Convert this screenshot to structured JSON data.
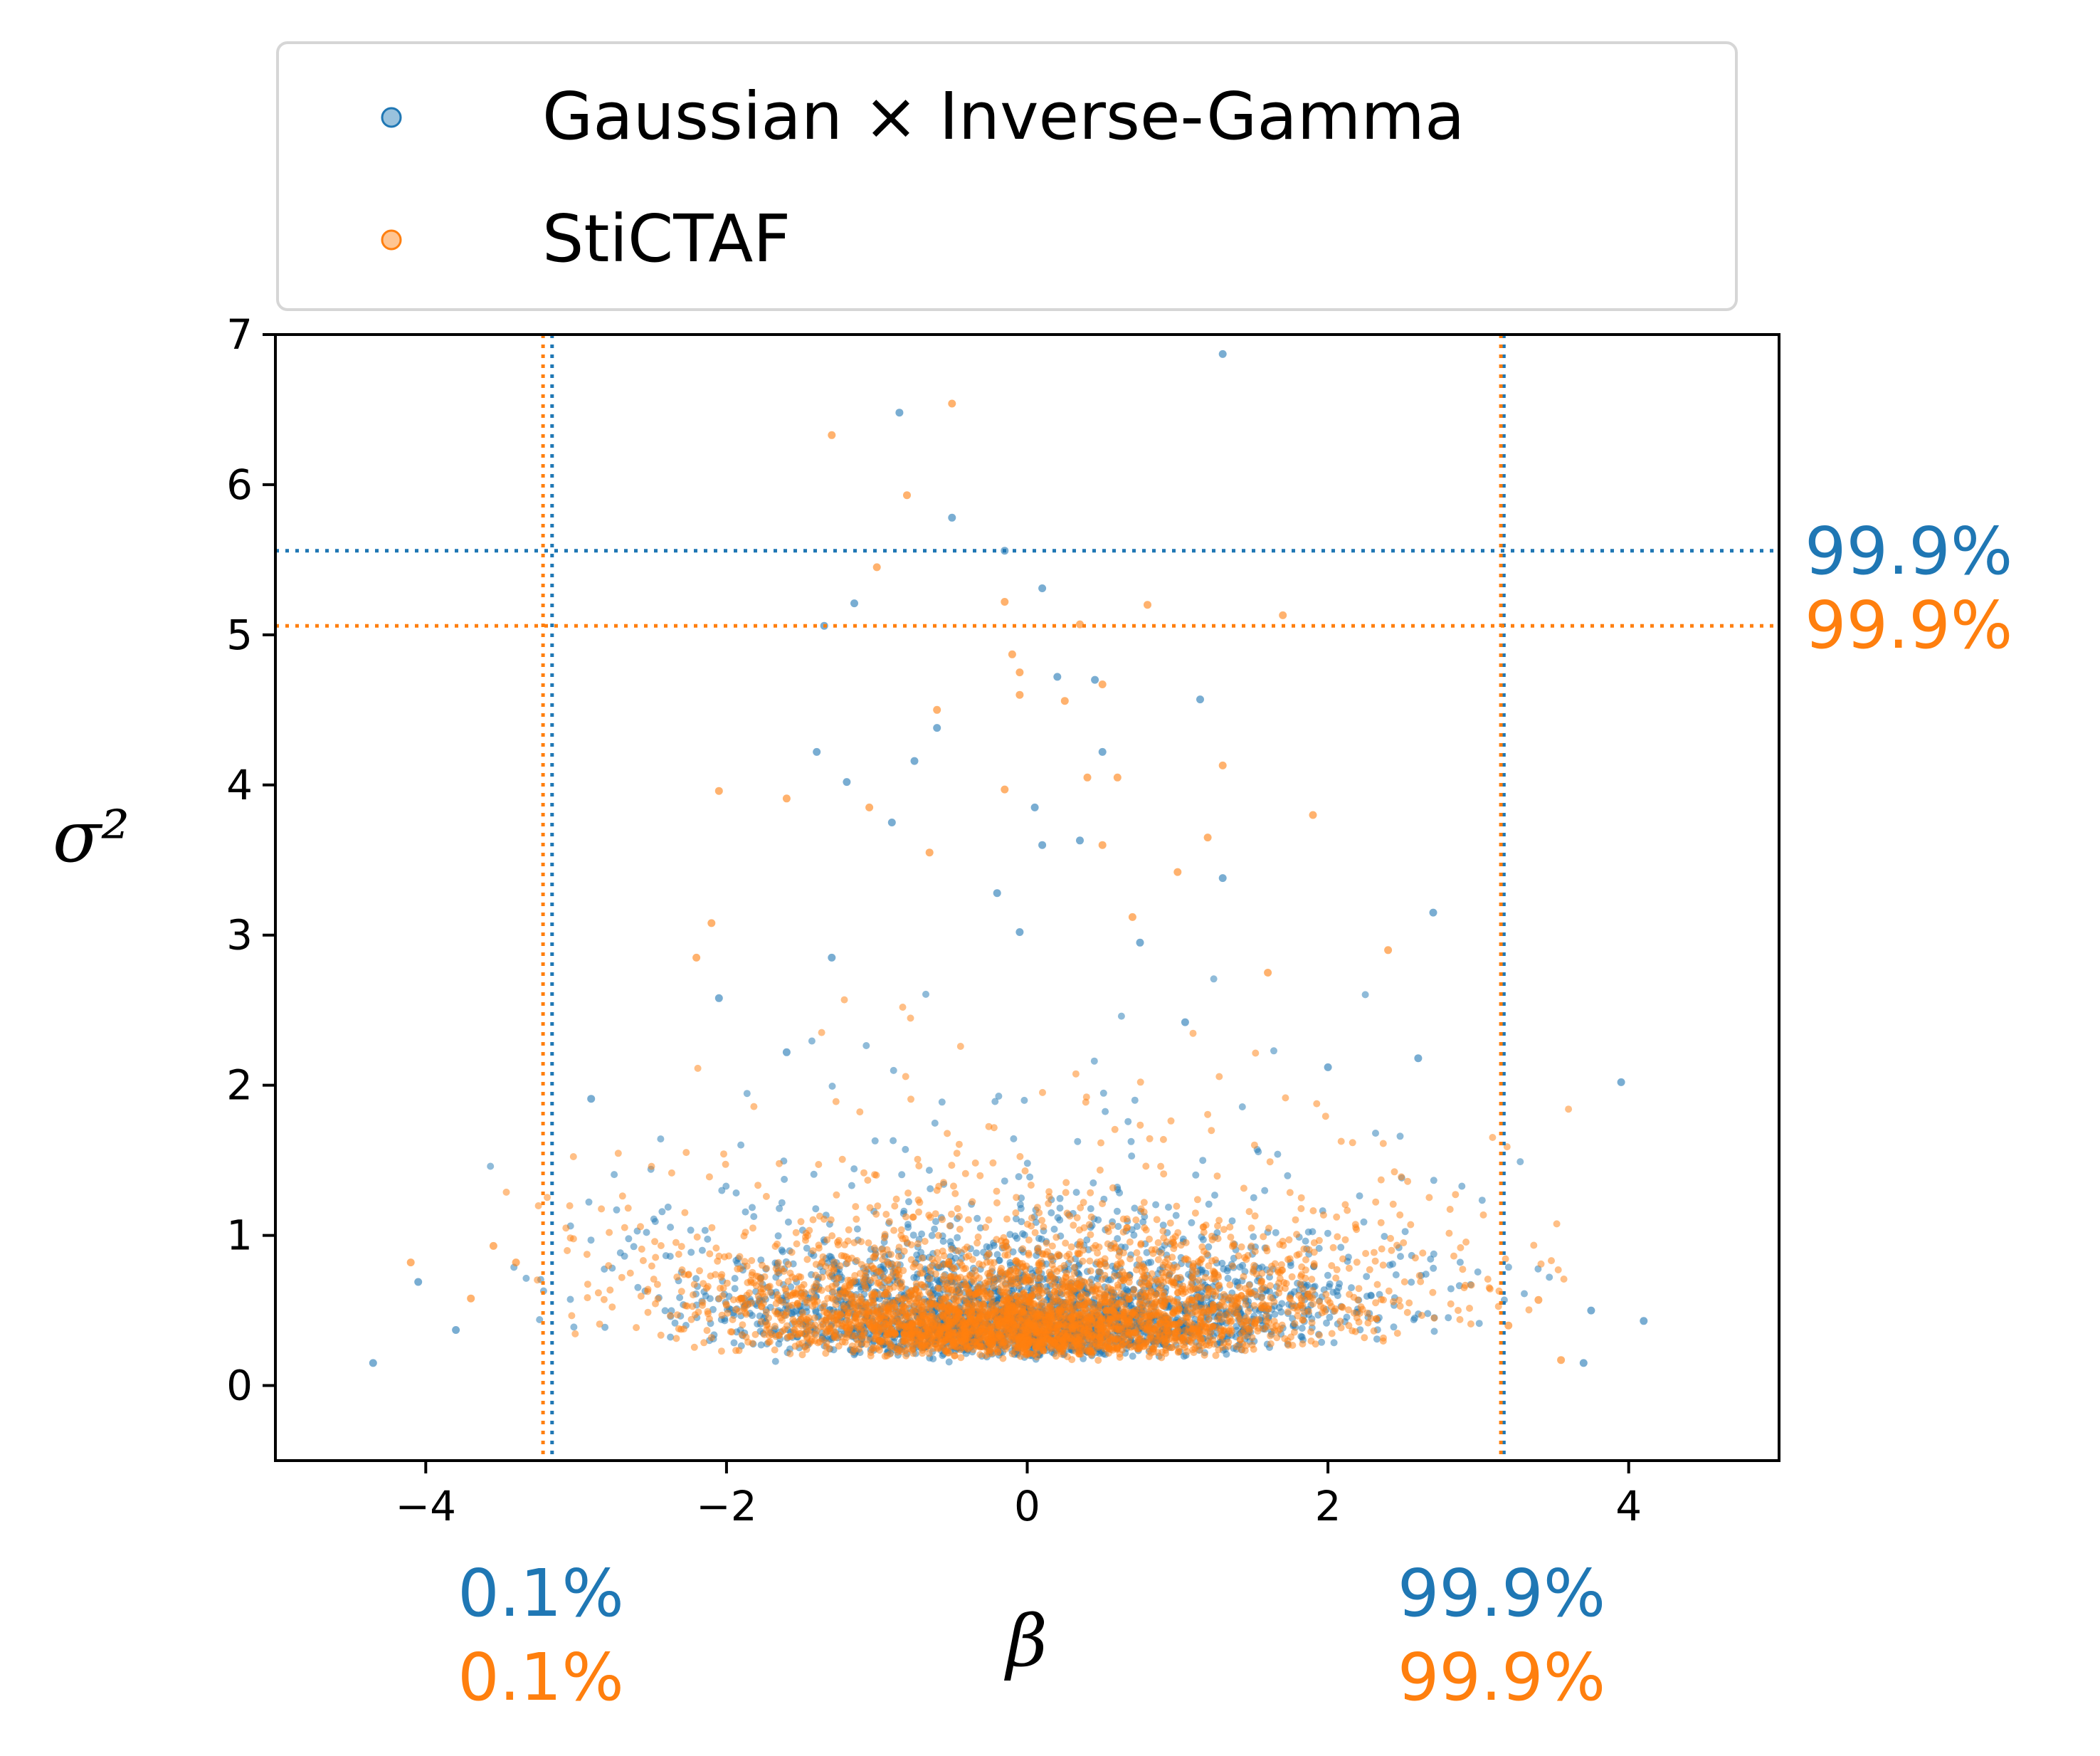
{
  "chart_data": {
    "type": "scatter",
    "title": "",
    "xlabel": "β",
    "ylabel": "σ²",
    "xlim": [
      -5,
      5
    ],
    "ylim": [
      -0.5,
      7
    ],
    "x_ticks": [
      -4,
      -2,
      0,
      2,
      4
    ],
    "y_ticks": [
      0,
      1,
      2,
      3,
      4,
      5,
      6,
      7
    ],
    "x_tick_labels": [
      "−4",
      "−2",
      "0",
      "2",
      "4"
    ],
    "y_tick_labels": [
      "0",
      "1",
      "2",
      "3",
      "4",
      "5",
      "6",
      "7"
    ],
    "grid": false,
    "legend": {
      "placement": "top",
      "entries": [
        "Gaussian × Inverse-Gamma",
        "StiCTAF"
      ]
    },
    "series": [
      {
        "name": "Gaussian × Inverse-Gamma",
        "color": "#1f77b4",
        "sample_points": [
          [
            1.3,
            6.87
          ],
          [
            -0.85,
            6.48
          ],
          [
            -0.5,
            5.78
          ],
          [
            -0.15,
            5.56
          ],
          [
            0.1,
            5.31
          ],
          [
            -1.15,
            5.21
          ],
          [
            -1.35,
            5.06
          ],
          [
            0.2,
            4.72
          ],
          [
            1.15,
            4.57
          ],
          [
            0.45,
            4.7
          ],
          [
            -1.4,
            4.22
          ],
          [
            -0.6,
            4.38
          ],
          [
            0.5,
            4.22
          ],
          [
            -0.75,
            4.16
          ],
          [
            -1.2,
            4.02
          ],
          [
            0.05,
            3.85
          ],
          [
            -0.9,
            3.75
          ],
          [
            1.3,
            3.38
          ],
          [
            0.1,
            3.6
          ],
          [
            0.35,
            3.63
          ],
          [
            2.7,
            3.15
          ],
          [
            -0.2,
            3.28
          ],
          [
            3.95,
            2.02
          ],
          [
            -4.35,
            0.15
          ],
          [
            -4.05,
            0.69
          ],
          [
            4.1,
            0.43
          ],
          [
            3.75,
            0.5
          ],
          [
            3.7,
            0.15
          ],
          [
            -3.8,
            0.37
          ],
          [
            -0.05,
            3.02
          ],
          [
            -1.3,
            2.85
          ],
          [
            0.75,
            2.95
          ],
          [
            1.05,
            2.42
          ],
          [
            2.0,
            2.12
          ],
          [
            2.6,
            2.18
          ],
          [
            -2.05,
            2.58
          ],
          [
            -2.9,
            1.91
          ],
          [
            -1.6,
            2.22
          ]
        ]
      },
      {
        "name": "StiCTAF",
        "color": "#ff7f0e",
        "sample_points": [
          [
            -0.5,
            6.54
          ],
          [
            -1.3,
            6.33
          ],
          [
            -0.8,
            5.93
          ],
          [
            -1.0,
            5.45
          ],
          [
            -0.15,
            5.22
          ],
          [
            0.8,
            5.2
          ],
          [
            0.35,
            5.07
          ],
          [
            1.7,
            5.13
          ],
          [
            -0.05,
            4.75
          ],
          [
            -0.1,
            4.87
          ],
          [
            -0.05,
            4.6
          ],
          [
            0.25,
            4.56
          ],
          [
            -0.6,
            4.5
          ],
          [
            0.5,
            4.67
          ],
          [
            0.6,
            4.05
          ],
          [
            -0.15,
            3.97
          ],
          [
            -2.05,
            3.96
          ],
          [
            -1.6,
            3.91
          ],
          [
            1.3,
            4.13
          ],
          [
            1.9,
            3.8
          ],
          [
            -1.05,
            3.85
          ],
          [
            0.4,
            4.05
          ],
          [
            -0.65,
            3.55
          ],
          [
            1.2,
            3.65
          ],
          [
            0.5,
            3.6
          ],
          [
            -2.1,
            3.08
          ],
          [
            0.7,
            3.12
          ],
          [
            1.0,
            3.42
          ],
          [
            -4.1,
            0.82
          ],
          [
            -3.55,
            0.93
          ],
          [
            -3.4,
            0.82
          ],
          [
            -3.7,
            0.58
          ],
          [
            3.4,
            0.57
          ],
          [
            3.55,
            0.17
          ],
          [
            3.2,
            0.4
          ],
          [
            -2.2,
            2.85
          ],
          [
            1.6,
            2.75
          ],
          [
            2.4,
            2.9
          ]
        ]
      }
    ],
    "reference_lines": [
      {
        "axis": "x",
        "value": -3.16,
        "color": "#1f77b4",
        "label": "0.1%"
      },
      {
        "axis": "x",
        "value": -3.22,
        "color": "#ff7f0e",
        "label": "0.1%"
      },
      {
        "axis": "x",
        "value": 3.17,
        "color": "#1f77b4",
        "label": "99.9%"
      },
      {
        "axis": "x",
        "value": 3.15,
        "color": "#ff7f0e",
        "label": "99.9%"
      },
      {
        "axis": "y",
        "value": 5.56,
        "color": "#1f77b4",
        "label": "99.9%"
      },
      {
        "axis": "y",
        "value": 5.06,
        "color": "#ff7f0e",
        "label": "99.9%"
      }
    ]
  }
}
